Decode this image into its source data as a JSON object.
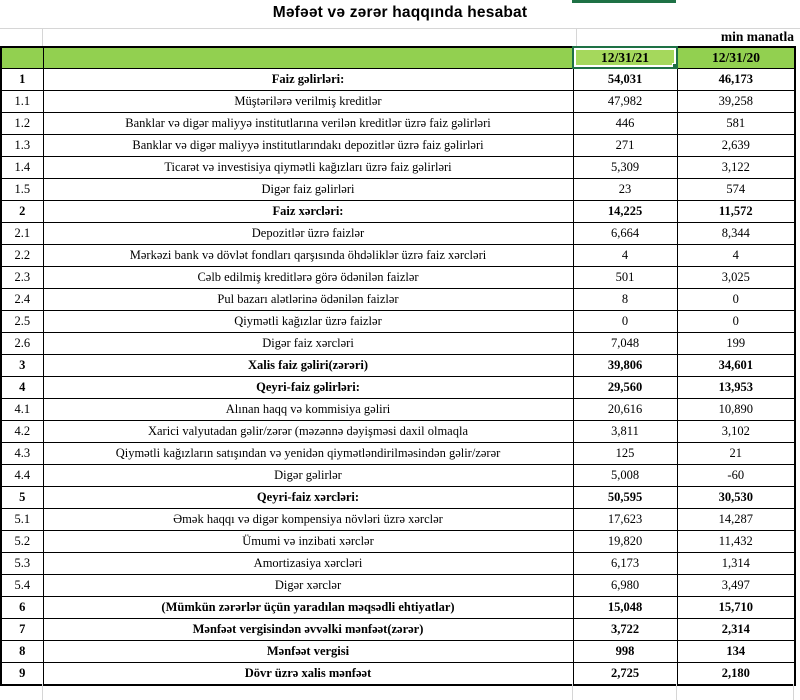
{
  "title": "Məfəət və zərər haqqında hesabat",
  "unit_label": "min manatla",
  "columns": [
    "12/31/21",
    "12/31/20"
  ],
  "selection": {
    "selected_column_header": "12/31/21"
  },
  "colors": {
    "header_green": "#92d050",
    "selected_cell_green": "#a5d85c",
    "selection_border_green": "#1e7145",
    "cell_border": "#000000",
    "gridline": "#d6d6d6"
  },
  "table": {
    "rows": [
      {
        "num": "1",
        "label": "Faiz gəlirləri:",
        "v21": "54,031",
        "v20": "46,173",
        "bold": true
      },
      {
        "num": "1.1",
        "label": "Müştərilərə verilmiş kreditlər",
        "v21": "47,982",
        "v20": "39,258",
        "bold": false
      },
      {
        "num": "1.2",
        "label": "Banklar və digər maliyyə institutlarına verilən kreditlər üzrə faiz gəlirləri",
        "v21": "446",
        "v20": "581",
        "bold": false
      },
      {
        "num": "1.3",
        "label": "Banklar və digər maliyyə institutlarındakı depozitlər üzrə faiz gəlirləri",
        "v21": "271",
        "v20": "2,639",
        "bold": false
      },
      {
        "num": "1.4",
        "label": "Ticarət və investisiya qiymətli kağızları üzrə faiz gəlirləri",
        "v21": "5,309",
        "v20": "3,122",
        "bold": false
      },
      {
        "num": "1.5",
        "label": "Digər faiz gəlirləri",
        "v21": "23",
        "v20": "574",
        "bold": false
      },
      {
        "num": "2",
        "label": "Faiz xərcləri:",
        "v21": "14,225",
        "v20": "11,572",
        "bold": true
      },
      {
        "num": "2.1",
        "label": "Depozitlər üzrə faizlər",
        "v21": "6,664",
        "v20": "8,344",
        "bold": false
      },
      {
        "num": "2.2",
        "label": "Mərkəzi bank və dövlət fondları qarşısında öhdəliklər üzrə faiz xərcləri",
        "v21": "4",
        "v20": "4",
        "bold": false
      },
      {
        "num": "2.3",
        "label": "Cəlb edilmiş kreditlərə görə ödənilən faizlər",
        "v21": "501",
        "v20": "3,025",
        "bold": false
      },
      {
        "num": "2.4",
        "label": "Pul bazarı alətlərinə ödənilən faizlər",
        "v21": "8",
        "v20": "0",
        "bold": false
      },
      {
        "num": "2.5",
        "label": "Qiymətli kağızlar üzrə faizlər",
        "v21": "0",
        "v20": "0",
        "bold": false
      },
      {
        "num": "2.6",
        "label": "Digər faiz xərcləri",
        "v21": "7,048",
        "v20": "199",
        "bold": false
      },
      {
        "num": "3",
        "label": "Xalis faiz gəliri(zərəri)",
        "v21": "39,806",
        "v20": "34,601",
        "bold": true
      },
      {
        "num": "4",
        "label": "Qeyri-faiz gəlirləri:",
        "v21": "29,560",
        "v20": "13,953",
        "bold": true
      },
      {
        "num": "4.1",
        "label": "Alınan haqq və kommisiya gəliri",
        "v21": "20,616",
        "v20": "10,890",
        "bold": false
      },
      {
        "num": "4.2",
        "label": "Xarici valyutadan gəlir/zərər (məzənnə dəyişməsi daxil olmaqla",
        "v21": "3,811",
        "v20": "3,102",
        "bold": false
      },
      {
        "num": "4.3",
        "label": "Qiymətli kağızların satışından və yenidən qiymətləndirilməsindən gəlir/zərər",
        "v21": "125",
        "v20": "21",
        "bold": false
      },
      {
        "num": "4.4",
        "label": "Digər gəlirlər",
        "v21": "5,008",
        "v20": "-60",
        "bold": false
      },
      {
        "num": "5",
        "label": "Qeyri-faiz xərcləri:",
        "v21": "50,595",
        "v20": "30,530",
        "bold": true
      },
      {
        "num": "5.1",
        "label": "Əmək haqqı və digər kompensiya növləri üzrə xərclər",
        "v21": "17,623",
        "v20": "14,287",
        "bold": false
      },
      {
        "num": "5.2",
        "label": "Ümumi və inzibati xərclər",
        "v21": "19,820",
        "v20": "11,432",
        "bold": false
      },
      {
        "num": "5.3",
        "label": "Amortizasiya xərcləri",
        "v21": "6,173",
        "v20": "1,314",
        "bold": false
      },
      {
        "num": "5.4",
        "label": "Digər xərclər",
        "v21": "6,980",
        "v20": "3,497",
        "bold": false
      },
      {
        "num": "6",
        "label": "(Mümkün zərərlər üçün yaradılan məqsədli ehtiyatlar)",
        "v21": "15,048",
        "v20": "15,710",
        "bold": true
      },
      {
        "num": "7",
        "label": "Mənfəət vergisindən əvvəlki mənfəət(zərər)",
        "v21": "3,722",
        "v20": "2,314",
        "bold": true
      },
      {
        "num": "8",
        "label": "Mənfəət vergisi",
        "v21": "998",
        "v20": "134",
        "bold": true
      },
      {
        "num": "9",
        "label": "Dövr üzrə xalis mənfəət",
        "v21": "2,725",
        "v20": "2,180",
        "bold": true
      }
    ]
  }
}
